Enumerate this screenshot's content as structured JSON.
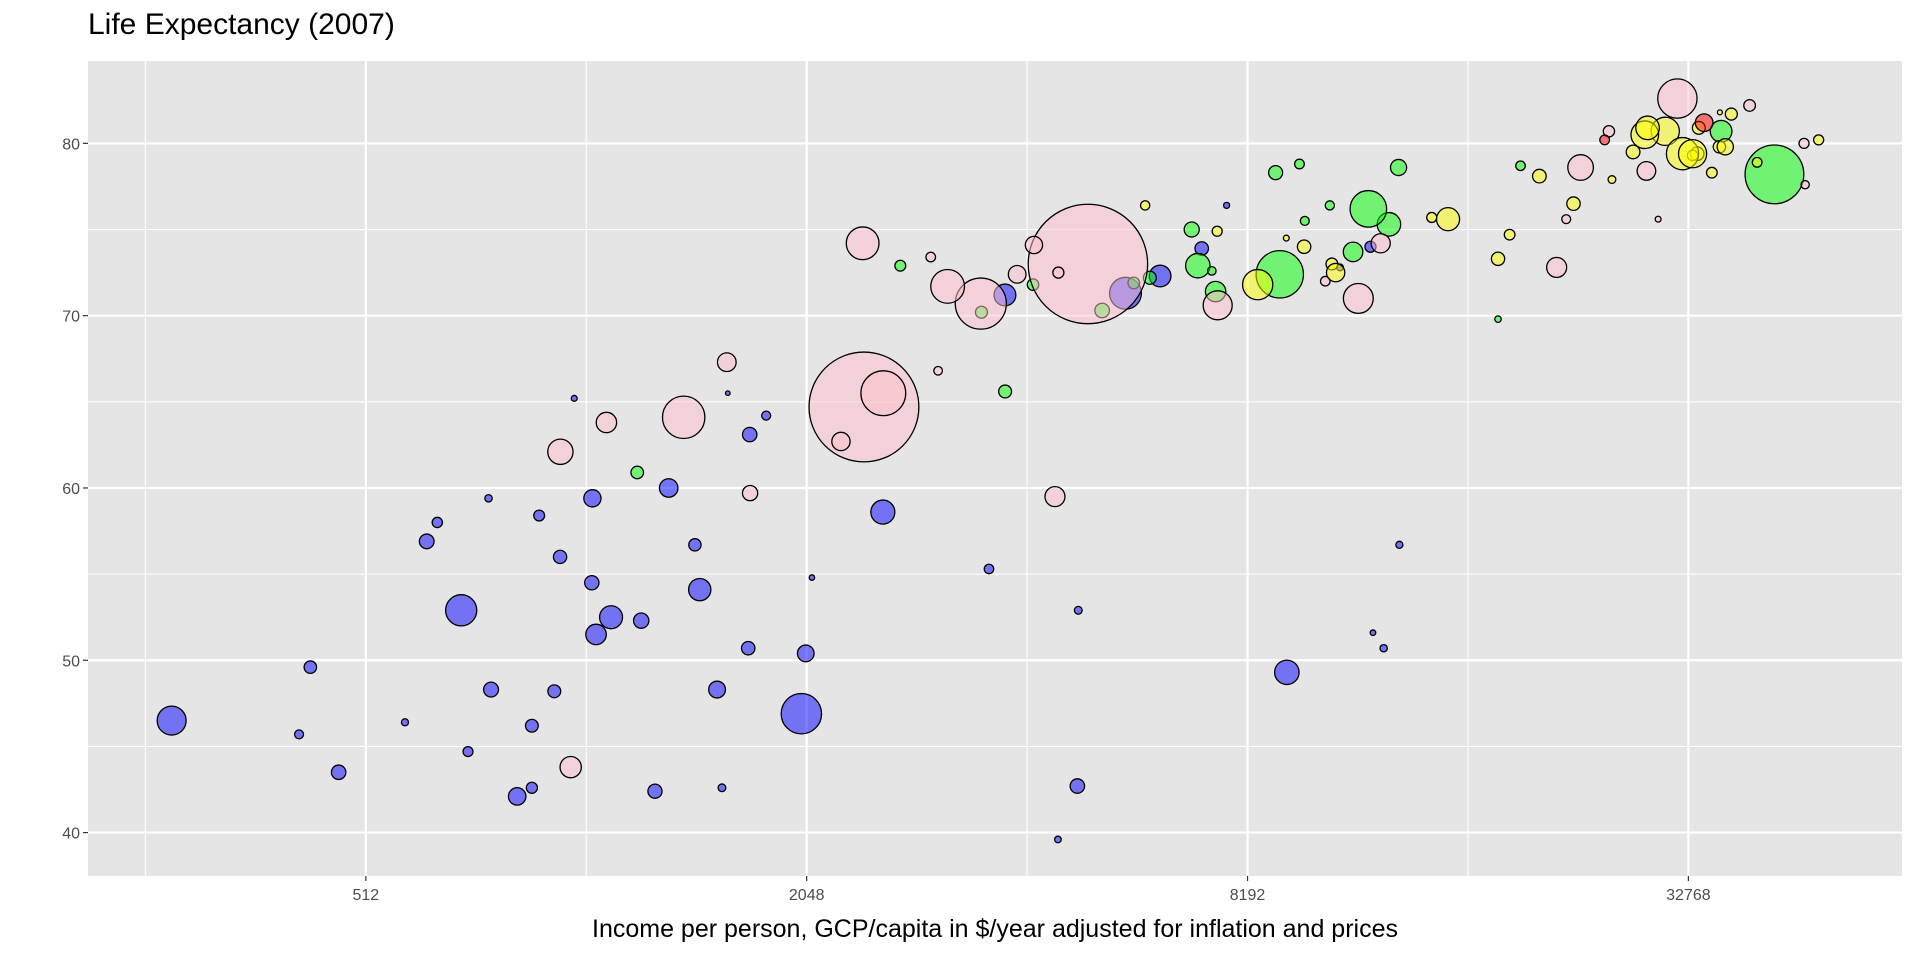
{
  "chart_data": {
    "type": "scatter",
    "title": "Life Expectancy (2007)",
    "xlabel": "Income per person, GCP/capita in $/year adjusted for inflation and prices",
    "ylabel": "",
    "x_scale": "log2",
    "xlim": [
      213.7,
      64150
    ],
    "ylim": [
      37.48,
      84.78
    ],
    "x_ticks": [
      512,
      2048,
      8192,
      32768
    ],
    "x_tick_labels": [
      "512",
      "2048",
      "8192",
      "32768"
    ],
    "x_minor_ticks": [
      256,
      1024,
      4096,
      16384
    ],
    "y_ticks": [
      40,
      50,
      60,
      70,
      80
    ],
    "y_tick_labels": [
      "40",
      "50",
      "60",
      "70",
      "80"
    ],
    "y_minor_ticks": [
      45,
      55,
      65,
      75
    ],
    "grid": true,
    "legend": "none",
    "panel_background": "#e5e5e5",
    "point_format": "[x, y, size (population, millions)]",
    "series": [
      {
        "color": "#0000ff",
        "points": [
          [
            6223,
            72.3,
            33.3
          ],
          [
            4797,
            42.7,
            12.4
          ],
          [
            1441,
            56.7,
            8.08
          ],
          [
            12570,
            50.7,
            1.64
          ],
          [
            1217,
            52.3,
            14.3
          ],
          [
            430,
            49.6,
            8.39
          ],
          [
            2042,
            50.4,
            17.7
          ],
          [
            706,
            44.7,
            4.37
          ],
          [
            1704,
            50.7,
            10.2
          ],
          [
            986,
            65.2,
            0.71
          ],
          [
            278,
            46.5,
            64.6
          ],
          [
            3633,
            55.3,
            3.8
          ],
          [
            1545,
            48.3,
            18.0
          ],
          [
            2082,
            54.8,
            0.5
          ],
          [
            5581,
            71.3,
            80.3
          ],
          [
            12154,
            51.6,
            0.55
          ],
          [
            641,
            58.0,
            4.9
          ],
          [
            691,
            52.9,
            76.5
          ],
          [
            13206,
            56.7,
            1.45
          ],
          [
            753,
            59.4,
            1.69
          ],
          [
            1327,
            60.0,
            22.9
          ],
          [
            943,
            56.0,
            9.9
          ],
          [
            579,
            46.4,
            1.47
          ],
          [
            1463,
            54.1,
            35.6
          ],
          [
            1569,
            42.6,
            2.0
          ],
          [
            415,
            45.7,
            3.19
          ],
          [
            12057,
            74.0,
            6.0
          ],
          [
            1044,
            59.4,
            19.2
          ],
          [
            759,
            48.3,
            13.3
          ],
          [
            1042,
            54.5,
            12.0
          ],
          [
            1803,
            64.2,
            3.27
          ],
          [
            10957,
            72.8,
            1.25
          ],
          [
            3820,
            71.2,
            33.8
          ],
          [
            824,
            42.1,
            19.95
          ],
          [
            4811,
            52.9,
            2.06
          ],
          [
            620,
            56.9,
            12.9
          ],
          [
            2014,
            46.9,
            135.0
          ],
          [
            7670,
            76.4,
            0.8
          ],
          [
            863,
            46.2,
            8.86
          ],
          [
            1598,
            65.5,
            0.2
          ],
          [
            1712,
            63.1,
            12.3
          ],
          [
            863,
            42.6,
            6.1
          ],
          [
            926,
            48.2,
            9.1
          ],
          [
            9270,
            49.3,
            44.0
          ],
          [
            2602,
            58.6,
            42.3
          ],
          [
            4513,
            39.6,
            1.13
          ],
          [
            1107,
            52.5,
            38.1
          ],
          [
            883,
            58.4,
            5.7
          ],
          [
            7093,
            73.9,
            10.3
          ],
          [
            1056,
            51.5,
            29.2
          ],
          [
            1271,
            42.4,
            11.7
          ],
          [
            470,
            43.5,
            12.3
          ]
        ]
      },
      {
        "color": "#00ff00",
        "points": [
          [
            12779,
            75.3,
            40.3
          ],
          [
            3822,
            65.6,
            9.1
          ],
          [
            9066,
            72.4,
            190.0
          ],
          [
            36319,
            80.7,
            33.4
          ],
          [
            13172,
            78.6,
            16.3
          ],
          [
            7007,
            72.9,
            44.2
          ],
          [
            9645,
            78.8,
            4.1
          ],
          [
            8948,
            78.3,
            11.4
          ],
          [
            6025,
            72.2,
            9.3
          ],
          [
            6873,
            75.0,
            13.8
          ],
          [
            5728,
            71.9,
            6.9
          ],
          [
            5186,
            70.3,
            12.6
          ],
          [
            1202,
            60.9,
            8.5
          ],
          [
            3548,
            70.2,
            7.5
          ],
          [
            7321,
            72.6,
            2.78
          ],
          [
            11978,
            76.2,
            108.7
          ],
          [
            2749,
            72.9,
            5.7
          ],
          [
            9809,
            75.5,
            3.2
          ],
          [
            4173,
            71.8,
            6.7
          ],
          [
            7409,
            71.4,
            28.7
          ],
          [
            19329,
            78.7,
            3.9
          ],
          [
            18009,
            69.8,
            1.06
          ],
          [
            42952,
            78.2,
            301.0
          ],
          [
            10611,
            76.4,
            3.45
          ],
          [
            11416,
            73.7,
            26.1
          ]
        ]
      },
      {
        "color": "#ffc0cb",
        "points": [
          [
            975,
            43.8,
            31.9
          ],
          [
            29796,
            75.6,
            0.71
          ],
          [
            1391,
            64.1,
            150.0
          ],
          [
            1714,
            59.7,
            14.1
          ],
          [
            4959,
            73.0,
            1318.7
          ],
          [
            39725,
            82.2,
            6.98
          ],
          [
            2452,
            64.7,
            1110.0
          ],
          [
            3541,
            70.7,
            223.5
          ],
          [
            11606,
            71.0,
            69.5
          ],
          [
            4471,
            59.5,
            27.5
          ],
          [
            25523,
            80.7,
            6.4
          ],
          [
            31656,
            82.6,
            127.5
          ],
          [
            4519,
            72.5,
            6.05
          ],
          [
            1593,
            67.3,
            23.3
          ],
          [
            23348,
            78.6,
            49.0
          ],
          [
            47307,
            77.6,
            2.5
          ],
          [
            10461,
            72.0,
            3.9
          ],
          [
            12452,
            74.2,
            24.8
          ],
          [
            3096,
            66.8,
            2.87
          ],
          [
            944,
            62.1,
            47.8
          ],
          [
            1091,
            63.8,
            28.9
          ],
          [
            22316,
            75.6,
            3.2
          ],
          [
            2606,
            65.5,
            169.0
          ],
          [
            3190,
            71.7,
            91.1
          ],
          [
            21655,
            72.8,
            27.6
          ],
          [
            47143,
            80.0,
            4.55
          ],
          [
            3970,
            72.4,
            20.4
          ],
          [
            4185,
            74.1,
            19.3
          ],
          [
            28718,
            78.4,
            23.2
          ],
          [
            7458,
            70.6,
            65.1
          ],
          [
            2442,
            74.2,
            85.3
          ],
          [
            3025,
            73.4,
            4.0
          ],
          [
            2281,
            62.7,
            22.2
          ]
        ]
      },
      {
        "color": "#ffff00",
        "points": [
          [
            5937,
            76.4,
            3.6
          ],
          [
            36126,
            79.8,
            8.2
          ],
          [
            33693,
            79.4,
            10.4
          ],
          [
            7446,
            74.9,
            4.55
          ],
          [
            10681,
            73.0,
            7.3
          ],
          [
            14619,
            75.7,
            4.49
          ],
          [
            22833,
            76.5,
            10.2
          ],
          [
            35278,
            78.3,
            5.47
          ],
          [
            33207,
            79.3,
            5.24
          ],
          [
            30470,
            80.7,
            61.1
          ],
          [
            32170,
            79.4,
            82.4
          ],
          [
            27538,
            79.5,
            10.7
          ],
          [
            18009,
            73.3,
            9.96
          ],
          [
            36181,
            81.8,
            0.3
          ],
          [
            40676,
            78.9,
            4.1
          ],
          [
            28570,
            80.5,
            58.1
          ],
          [
            9254,
            74.5,
            0.68
          ],
          [
            36798,
            79.8,
            16.6
          ],
          [
            49357,
            80.2,
            4.6
          ],
          [
            15390,
            75.6,
            38.5
          ],
          [
            20510,
            78.1,
            10.6
          ],
          [
            10808,
            72.5,
            22.3
          ],
          [
            9787,
            74.0,
            10.2
          ],
          [
            18678,
            74.7,
            5.4
          ],
          [
            25768,
            77.9,
            2.0
          ],
          [
            28821,
            80.9,
            40.4
          ],
          [
            33860,
            80.9,
            9.03
          ],
          [
            37506,
            81.7,
            7.55
          ],
          [
            8458,
            71.8,
            71.2
          ],
          [
            33203,
            79.4,
            60.8
          ]
        ]
      },
      {
        "color": "#ff0000",
        "points": [
          [
            34435,
            81.2,
            20.4
          ],
          [
            25185,
            80.2,
            4.1
          ]
        ]
      }
    ]
  }
}
